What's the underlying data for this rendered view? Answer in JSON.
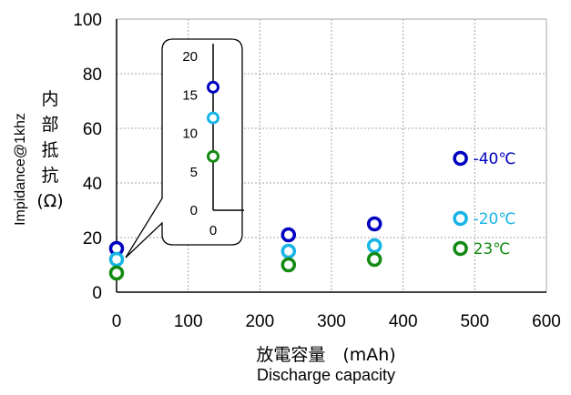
{
  "chart_data": {
    "type": "scatter",
    "x": [
      0,
      240,
      360,
      480
    ],
    "series": [
      {
        "name": "-40℃",
        "color": "#0000c0",
        "values": [
          16,
          21,
          25,
          49
        ]
      },
      {
        "name": "-20℃",
        "color": "#17b4e6",
        "values": [
          12,
          15,
          17,
          27
        ]
      },
      {
        "name": "23℃",
        "color": "#138a13",
        "values": [
          7,
          10,
          12,
          16
        ]
      }
    ],
    "xlim": [
      0,
      600
    ],
    "ylim": [
      0,
      100
    ],
    "xticks": [
      "0",
      "100",
      "200",
      "300",
      "400",
      "500",
      "600"
    ],
    "yticks": [
      "0",
      "20",
      "40",
      "60",
      "80",
      "100"
    ],
    "xlabel_line1": "放電容量　(mAh)",
    "xlabel_line2": "Discharge capacity",
    "ylabel_en": "Impidance@1khz",
    "ylabel_jp": [
      "内",
      "部",
      "抵",
      "抗",
      "(Ω)"
    ],
    "grid": true,
    "inset": {
      "x": 0,
      "values": [
        16,
        12,
        7
      ],
      "ylim": [
        0,
        20
      ],
      "yticks": [
        "0",
        "5",
        "10",
        "15",
        "20"
      ],
      "xticks": [
        "0"
      ]
    }
  }
}
